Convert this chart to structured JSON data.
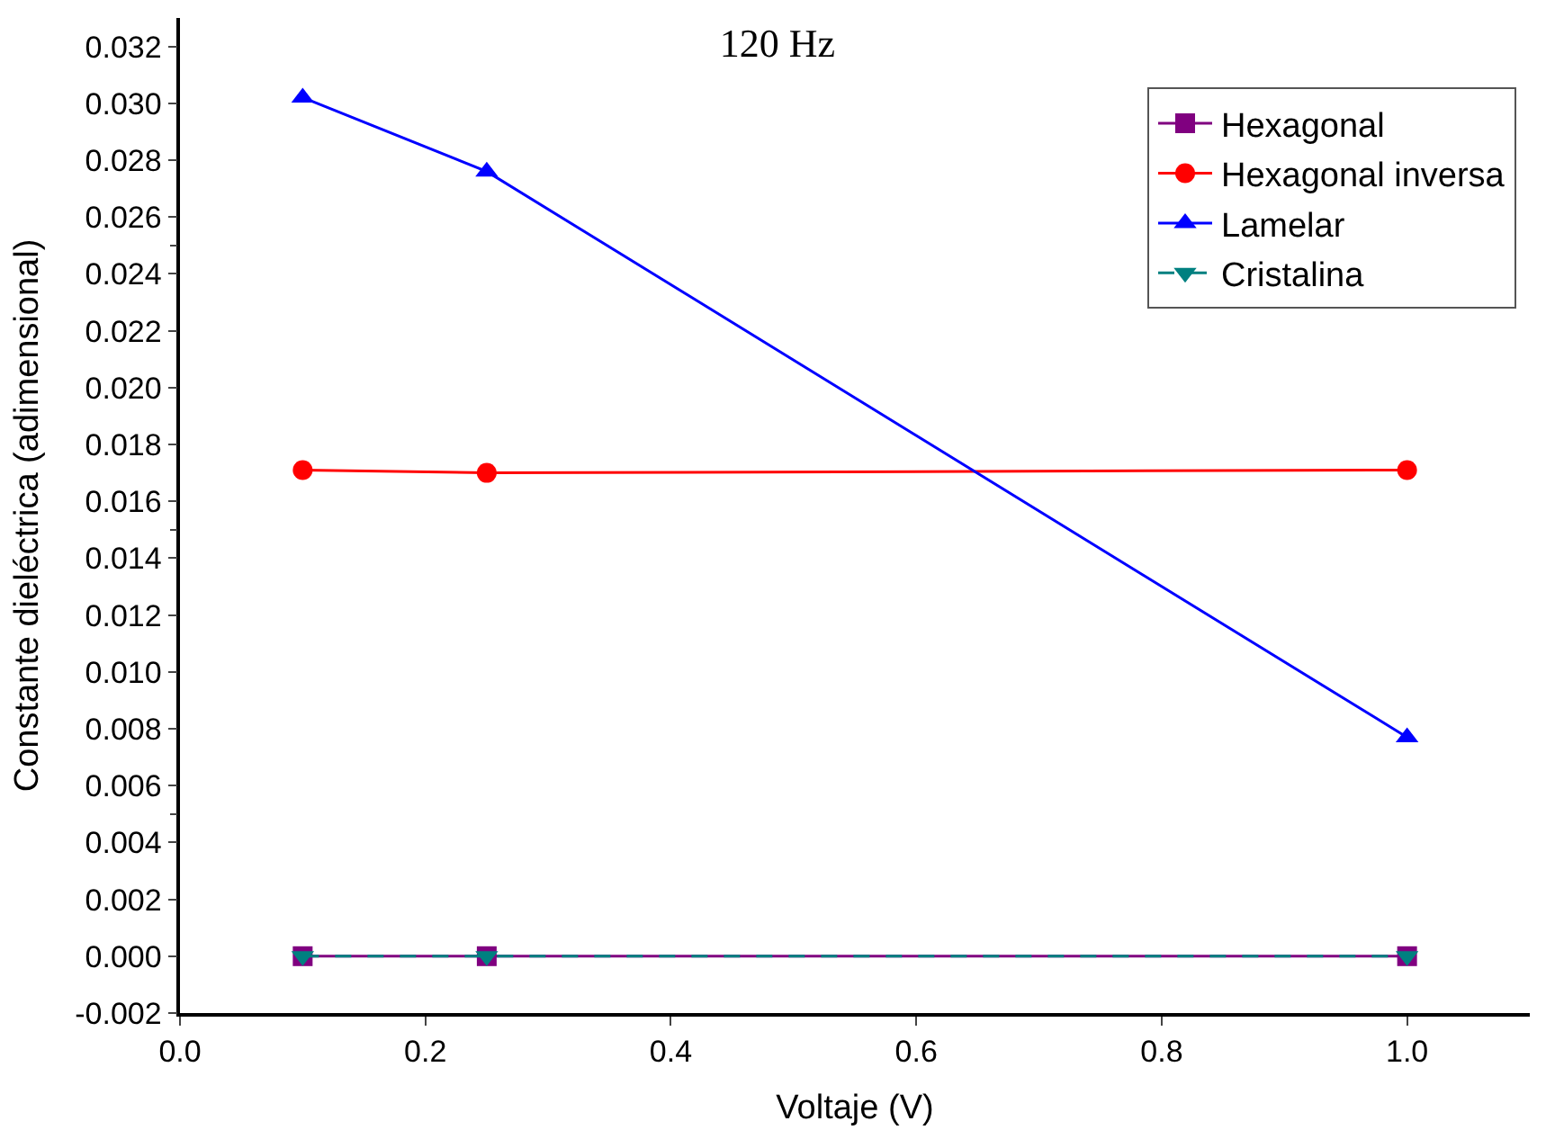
{
  "chart_data": {
    "type": "line",
    "title": "120 Hz",
    "xlabel": "Voltaje (V)",
    "ylabel": "Constante dieléctrica (adimensional)",
    "x": [
      0.1,
      0.25,
      1.0
    ],
    "series": [
      {
        "name": "Hexagonal",
        "color": "#800080",
        "values": [
          0,
          0,
          0
        ],
        "marker": "square",
        "line_style": "solid"
      },
      {
        "name": "Hexagonal inversa",
        "color": "#ff0000",
        "values": [
          0.0171,
          0.017,
          0.0171
        ],
        "marker": "circle",
        "line_style": "solid"
      },
      {
        "name": "Lamelar",
        "color": "#0000ff",
        "values": [
          0.0302,
          0.0276,
          0.0077
        ],
        "marker": "triangle",
        "line_style": "solid"
      },
      {
        "name": "Cristalina",
        "color": "#008080",
        "values": [
          0,
          0,
          0
        ],
        "marker": "triangle-down",
        "line_style": "dashed"
      }
    ],
    "xlim": [
      0,
      1.1
    ],
    "xticks": [
      {
        "value": 0,
        "label": "0.0"
      },
      0.2,
      0.4,
      0.6,
      0.8,
      {
        "value": 1.0,
        "label": "1.0"
      }
    ],
    "ylim": [
      -0.002,
      0.033
    ],
    "yticks": [
      -0.002,
      {
        "value": 0,
        "label": "0.000"
      },
      0.002,
      0.004,
      0.006,
      0.008,
      {
        "value": 0.01,
        "label": "0.010"
      },
      0.012,
      0.014,
      0.016,
      0.018,
      {
        "value": 0.02,
        "label": "0.020"
      },
      0.022,
      0.024,
      0.026,
      0.028,
      {
        "value": 0.03,
        "label": "0.030"
      },
      0.032
    ],
    "legend": "top right"
  }
}
